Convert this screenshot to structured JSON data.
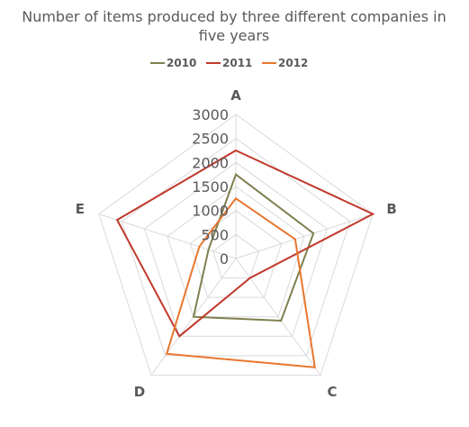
{
  "chart_data": {
    "type": "radar",
    "title_lines": [
      "Number of items produced by three different companies in",
      "five years"
    ],
    "categories": [
      "A",
      "B",
      "C",
      "D",
      "E"
    ],
    "series": [
      {
        "name": "2010",
        "color": "#7f7f4f",
        "values": [
          1750,
          1700,
          1600,
          1500,
          600
        ]
      },
      {
        "name": "2011",
        "color": "#c0392b",
        "values": [
          2250,
          3000,
          500,
          2000,
          2600
        ]
      },
      {
        "name": "2012",
        "color": "#e8772e",
        "values": [
          1250,
          1300,
          2800,
          2450,
          800
        ]
      }
    ],
    "radial_ticks": [
      "0",
      "500",
      "1000",
      "1500",
      "2000",
      "2500",
      "3000"
    ],
    "rlim": [
      0,
      3000
    ],
    "legend_position": "top",
    "grid": true
  }
}
